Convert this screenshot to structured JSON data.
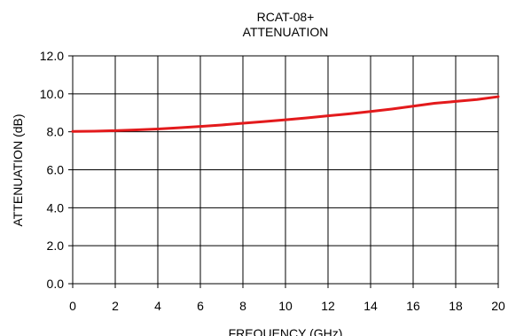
{
  "chart_data": {
    "type": "line",
    "title_line1": "RCAT-08+",
    "title_line2": "ATTENUATION",
    "xlabel": "FREQUENCY (GHz)",
    "ylabel": "ATTENUATION (dB)",
    "xlim": [
      0,
      20
    ],
    "ylim": [
      0,
      12
    ],
    "x_ticks": [
      "0",
      "2",
      "4",
      "6",
      "8",
      "10",
      "12",
      "14",
      "16",
      "18",
      "20"
    ],
    "y_ticks": [
      "0.0",
      "2.0",
      "4.0",
      "6.0",
      "8.0",
      "10.0",
      "12.0"
    ],
    "grid": true,
    "series": [
      {
        "color": "#e31a1c",
        "x": [
          0,
          1,
          2,
          3,
          4,
          5,
          6,
          7,
          8,
          9,
          10,
          11,
          12,
          13,
          14,
          15,
          16,
          17,
          18,
          19,
          20
        ],
        "values": [
          8.02,
          8.03,
          8.06,
          8.1,
          8.15,
          8.21,
          8.28,
          8.36,
          8.45,
          8.54,
          8.63,
          8.73,
          8.84,
          8.95,
          9.07,
          9.2,
          9.35,
          9.5,
          9.6,
          9.7,
          9.85
        ]
      }
    ]
  }
}
